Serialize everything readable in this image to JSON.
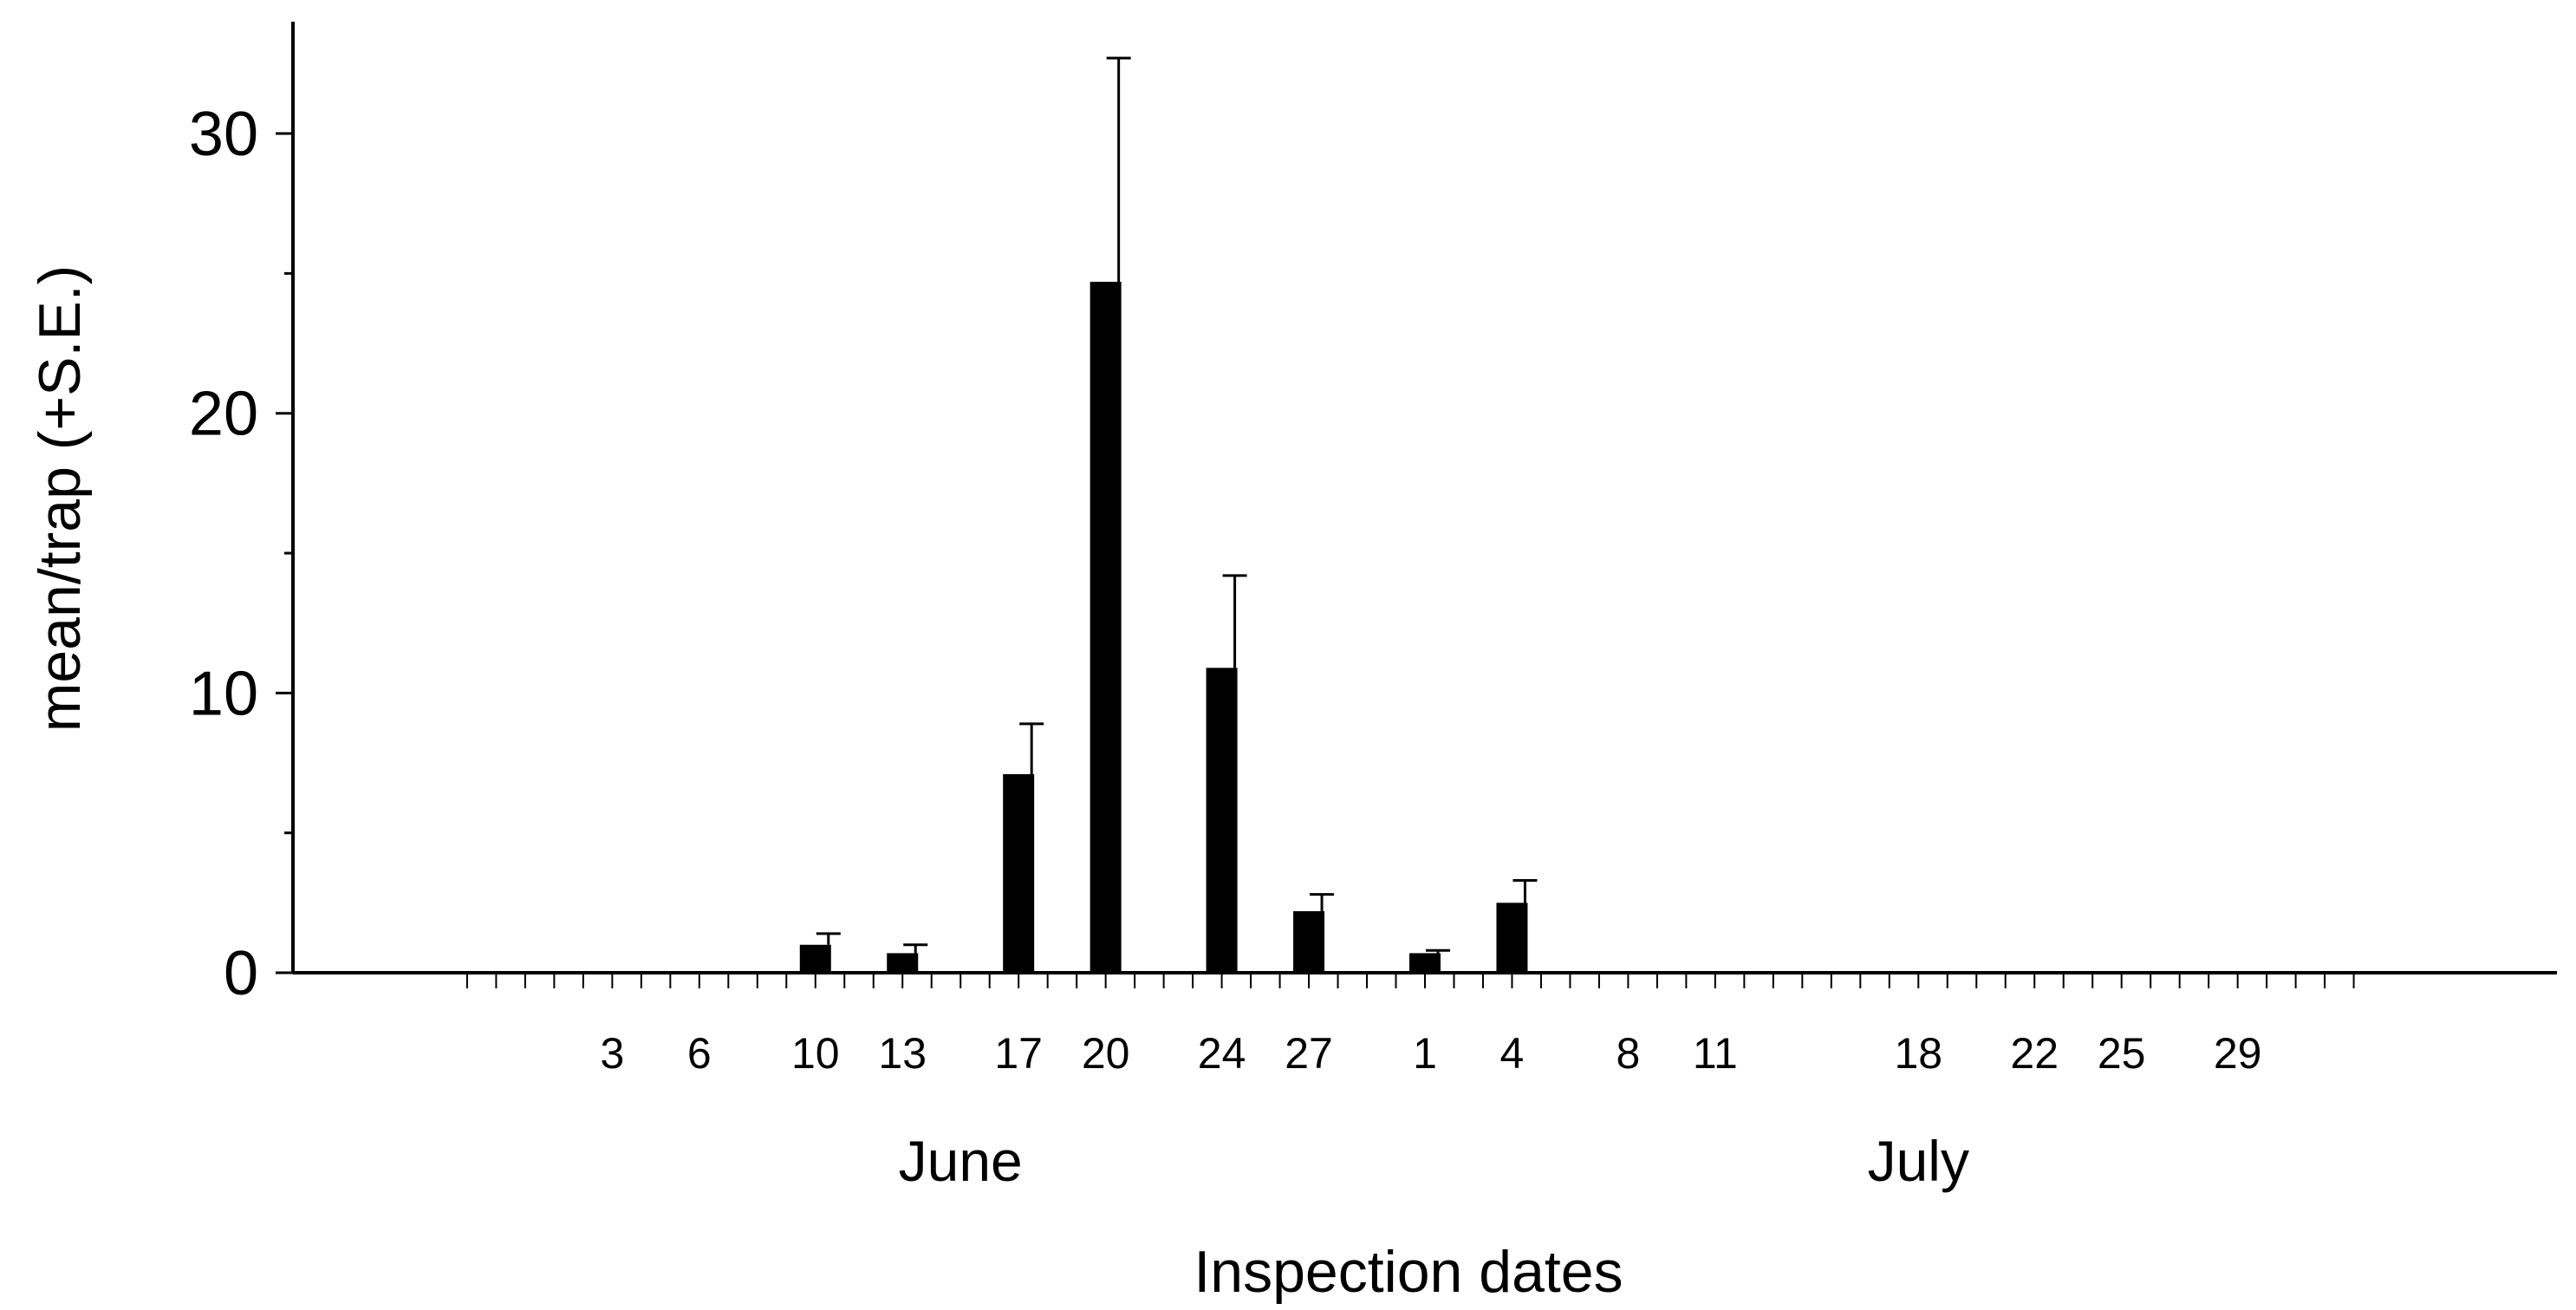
{
  "chart_data": {
    "type": "bar",
    "title": "",
    "xlabel": "Inspection dates",
    "ylabel": "mean/trap (+S.E.)",
    "ylim": [
      0,
      34
    ],
    "y_ticks": [
      0,
      10,
      20,
      30
    ],
    "y_minor_ticks": [
      5,
      15,
      25
    ],
    "grid": false,
    "legend": "none",
    "bar_color": "#000000",
    "x_range": [
      "2012-05-23",
      "2012-08-09"
    ],
    "dates": [
      "2012-06-10",
      "2012-06-13",
      "2012-06-17",
      "2012-06-20",
      "2012-06-24",
      "2012-06-27",
      "2012-07-01",
      "2012-07-04"
    ],
    "values": [
      1.0,
      0.7,
      7.1,
      24.7,
      10.9,
      2.2,
      0.7,
      2.5
    ],
    "se": [
      0.4,
      0.3,
      1.8,
      8.0,
      3.3,
      0.6,
      0.1,
      0.8
    ],
    "x_tick_labels": [
      {
        "date": "2012-06-03",
        "label": "3"
      },
      {
        "date": "2012-06-06",
        "label": "6"
      },
      {
        "date": "2012-06-10",
        "label": "10"
      },
      {
        "date": "2012-06-13",
        "label": "13"
      },
      {
        "date": "2012-06-17",
        "label": "17"
      },
      {
        "date": "2012-06-20",
        "label": "20"
      },
      {
        "date": "2012-06-24",
        "label": "24"
      },
      {
        "date": "2012-06-27",
        "label": "27"
      },
      {
        "date": "2012-07-01",
        "label": "1"
      },
      {
        "date": "2012-07-04",
        "label": "4"
      },
      {
        "date": "2012-07-08",
        "label": "8"
      },
      {
        "date": "2012-07-11",
        "label": "11"
      },
      {
        "date": "2012-07-18",
        "label": "18"
      },
      {
        "date": "2012-07-22",
        "label": "22"
      },
      {
        "date": "2012-07-25",
        "label": "25"
      },
      {
        "date": "2012-07-29",
        "label": "29"
      }
    ],
    "months": [
      {
        "label": "June",
        "date": "2012-06-15"
      },
      {
        "label": "July",
        "date": "2012-07-18"
      }
    ],
    "x_minor_ticks_range": [
      "2012-05-29",
      "2012-08-02"
    ]
  }
}
